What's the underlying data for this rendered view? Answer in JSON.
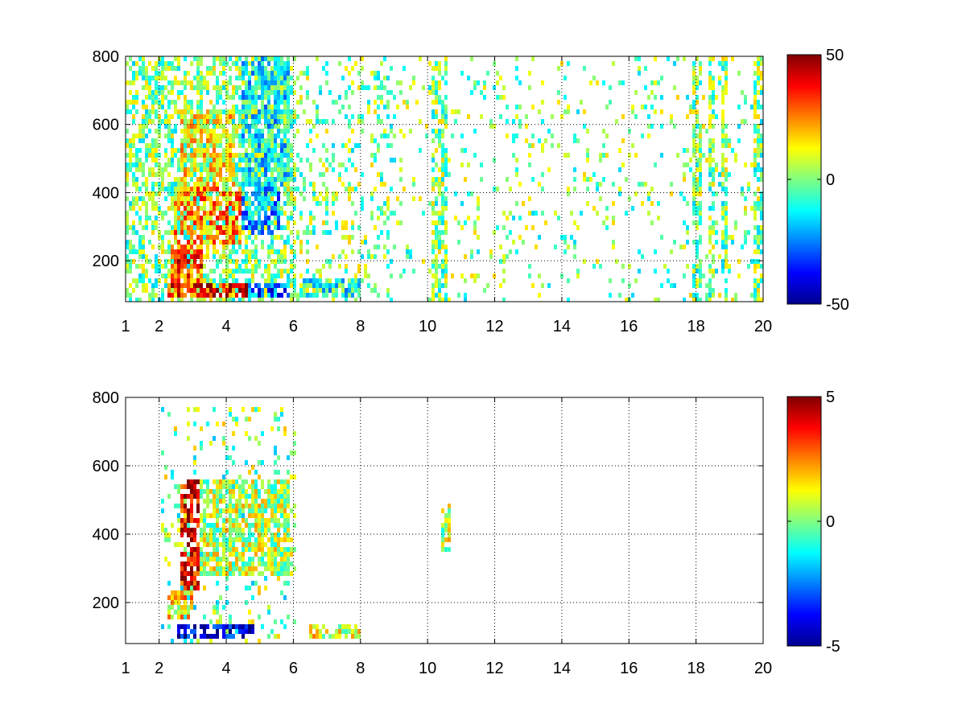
{
  "chart_data": [
    {
      "type": "heatmap",
      "title": "",
      "xlabel": "",
      "ylabel": "",
      "xlim": [
        1,
        20
      ],
      "ylim": [
        80,
        800
      ],
      "x_ticks": [
        "1",
        "2",
        "4",
        "6",
        "8",
        "10",
        "12",
        "14",
        "16",
        "18",
        "20"
      ],
      "x_tick_values": [
        1,
        2,
        4,
        6,
        8,
        10,
        12,
        14,
        16,
        18,
        20
      ],
      "y_ticks": [
        "200",
        "400",
        "600",
        "800"
      ],
      "y_tick_values": [
        200,
        400,
        600,
        800
      ],
      "grid": true,
      "grid_style": "dotted",
      "colormap": "jet",
      "colorbar": {
        "min": -50,
        "max": 50,
        "ticks": [
          "50",
          "0",
          "-50"
        ],
        "tick_values": [
          50,
          0,
          -50
        ]
      },
      "intensity_regions": [
        {
          "x": [
            2.2,
            4.6
          ],
          "y": [
            100,
            140
          ],
          "value": 35
        },
        {
          "x": [
            4.6,
            5.8
          ],
          "y": [
            100,
            140
          ],
          "value": -28
        },
        {
          "x": [
            2.3,
            3.3
          ],
          "y": [
            140,
            260
          ],
          "value": 30
        },
        {
          "x": [
            2.4,
            4.4
          ],
          "y": [
            260,
            420
          ],
          "value": 22
        },
        {
          "x": [
            4.2,
            5.6
          ],
          "y": [
            280,
            420
          ],
          "value": -20
        },
        {
          "x": [
            2.6,
            4.2
          ],
          "y": [
            420,
            650
          ],
          "value": 12
        },
        {
          "x": [
            4.4,
            5.8
          ],
          "y": [
            420,
            800
          ],
          "value": -12
        },
        {
          "x": [
            6.2,
            8.0
          ],
          "y": [
            100,
            160
          ],
          "value": -10
        }
      ],
      "sparse_columns": [
        10.2,
        10.4,
        18.0,
        18.4,
        18.8,
        19.8
      ]
    },
    {
      "type": "heatmap",
      "title": "",
      "xlabel": "",
      "ylabel": "",
      "xlim": [
        1,
        20
      ],
      "ylim": [
        80,
        800
      ],
      "x_ticks": [
        "1",
        "2",
        "4",
        "6",
        "8",
        "10",
        "12",
        "14",
        "16",
        "18",
        "20"
      ],
      "x_tick_values": [
        1,
        2,
        4,
        6,
        8,
        10,
        12,
        14,
        16,
        18,
        20
      ],
      "y_ticks": [
        "200",
        "400",
        "600",
        "800"
      ],
      "y_tick_values": [
        200,
        400,
        600,
        800
      ],
      "grid": true,
      "grid_style": "dotted",
      "colormap": "jet",
      "colorbar": {
        "min": -5,
        "max": 5,
        "ticks": [
          "5",
          "0",
          "-5"
        ],
        "tick_values": [
          5,
          0,
          -5
        ]
      },
      "intensity_regions": [
        {
          "x": [
            2.5,
            4.8
          ],
          "y": [
            100,
            140
          ],
          "value": -4.2
        },
        {
          "x": [
            2.6,
            3.2
          ],
          "y": [
            240,
            560
          ],
          "value": 4.0
        },
        {
          "x": [
            3.2,
            5.8
          ],
          "y": [
            280,
            560
          ],
          "value": 0.5
        },
        {
          "x": [
            2.2,
            3.0
          ],
          "y": [
            160,
            240
          ],
          "value": 1.5
        },
        {
          "x": [
            6.4,
            8.0
          ],
          "y": [
            100,
            140
          ],
          "value": 1.0
        },
        {
          "x": [
            10.4,
            10.6
          ],
          "y": [
            360,
            500
          ],
          "value": 0.5
        }
      ],
      "sparse_columns": []
    }
  ]
}
